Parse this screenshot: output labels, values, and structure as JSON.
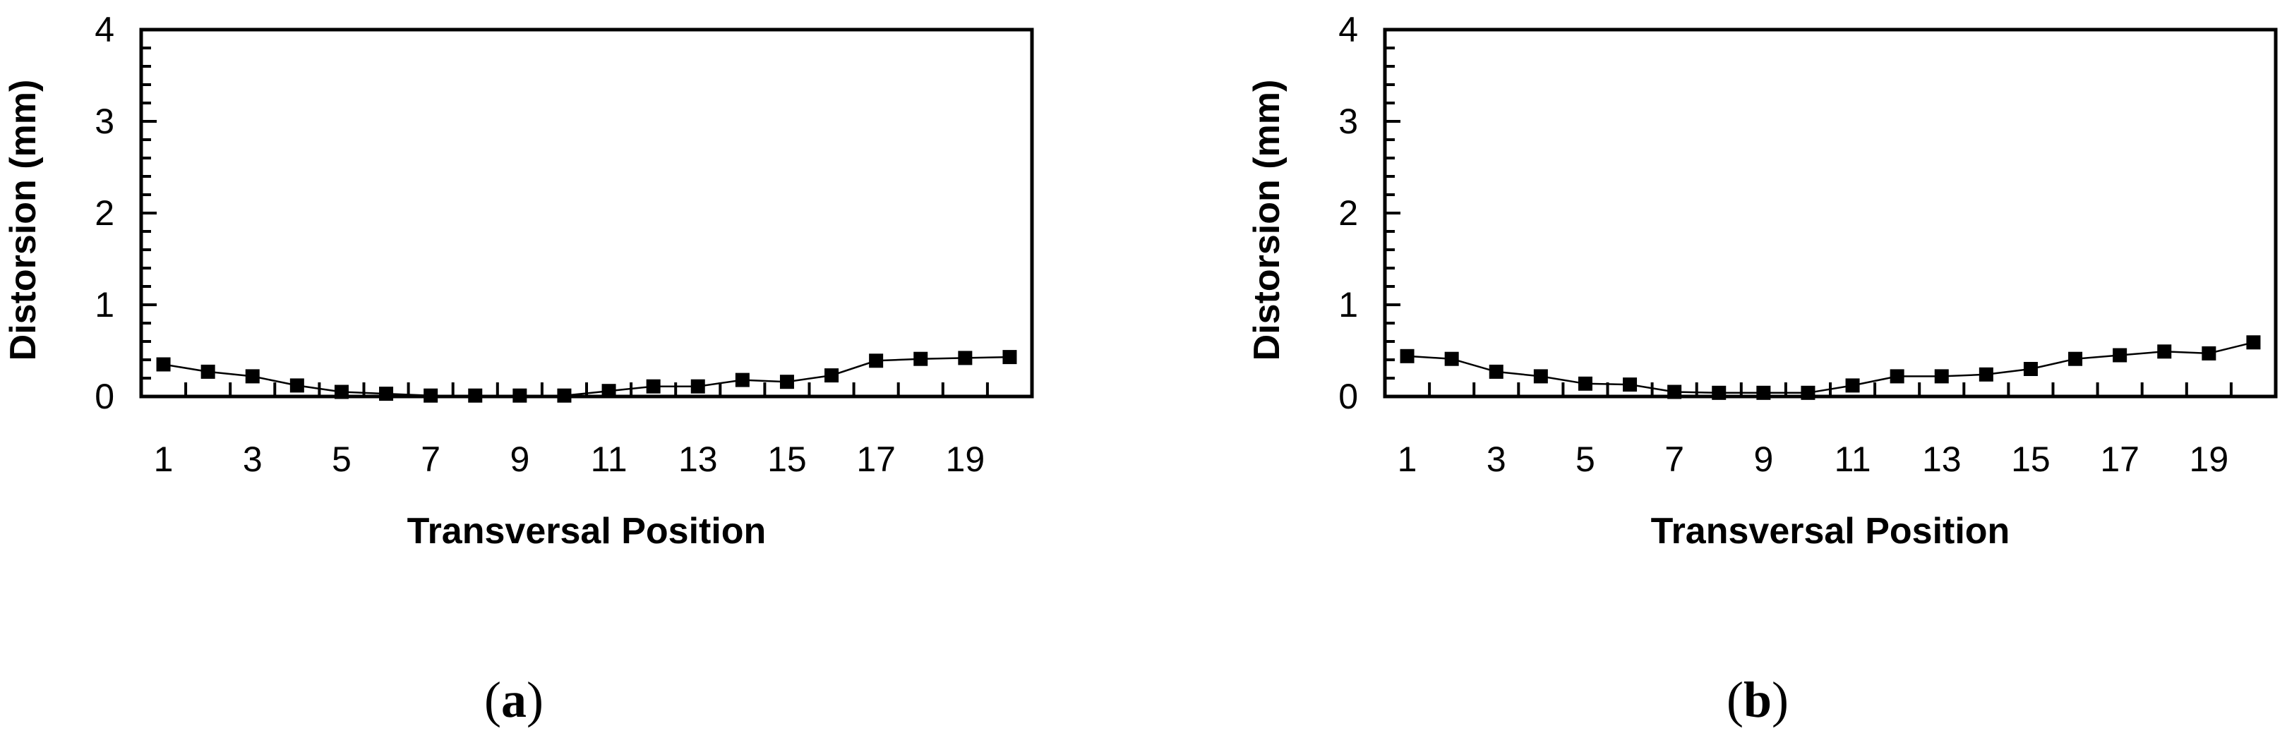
{
  "chart_data": [
    {
      "type": "line",
      "panel": "a",
      "caption": "(a)",
      "caption_letter": "a",
      "xlabel": "Transversal Position",
      "ylabel": "Distorsion (mm)",
      "ylim": [
        0,
        4
      ],
      "yticks": [
        "0",
        "1",
        "2",
        "3",
        "4"
      ],
      "xlim": [
        0.5,
        20.5
      ],
      "xtick_labels": [
        "1",
        "3",
        "5",
        "7",
        "9",
        "11",
        "13",
        "15",
        "17",
        "19"
      ],
      "grid": false,
      "x": [
        1,
        2,
        3,
        4,
        5,
        6,
        7,
        8,
        9,
        10,
        11,
        12,
        13,
        14,
        15,
        16,
        17,
        18,
        19,
        20
      ],
      "series": [
        {
          "values": [
            0.35,
            0.27,
            0.22,
            0.12,
            0.05,
            0.03,
            0.01,
            0.01,
            0.01,
            0.01,
            0.06,
            0.11,
            0.11,
            0.18,
            0.16,
            0.23,
            0.39,
            0.41,
            0.42,
            0.43
          ],
          "color": "#000000",
          "marker": "square"
        }
      ]
    },
    {
      "type": "line",
      "panel": "b",
      "caption": "(b)",
      "caption_letter": "b",
      "xlabel": "Transversal Position",
      "ylabel": "Distorsion (mm)",
      "ylim": [
        0,
        4
      ],
      "yticks": [
        "0",
        "1",
        "2",
        "3",
        "4"
      ],
      "xlim": [
        0.5,
        20.5
      ],
      "xtick_labels": [
        "1",
        "3",
        "5",
        "7",
        "9",
        "11",
        "13",
        "15",
        "17",
        "19"
      ],
      "grid": false,
      "x": [
        1,
        2,
        3,
        4,
        5,
        6,
        7,
        8,
        9,
        10,
        11,
        12,
        13,
        14,
        15,
        16,
        17,
        18,
        19,
        20
      ],
      "series": [
        {
          "values": [
            0.44,
            0.41,
            0.27,
            0.22,
            0.14,
            0.13,
            0.05,
            0.04,
            0.04,
            0.04,
            0.12,
            0.22,
            0.22,
            0.24,
            0.3,
            0.41,
            0.45,
            0.49,
            0.47,
            0.59
          ],
          "color": "#000000",
          "marker": "square"
        }
      ]
    }
  ]
}
